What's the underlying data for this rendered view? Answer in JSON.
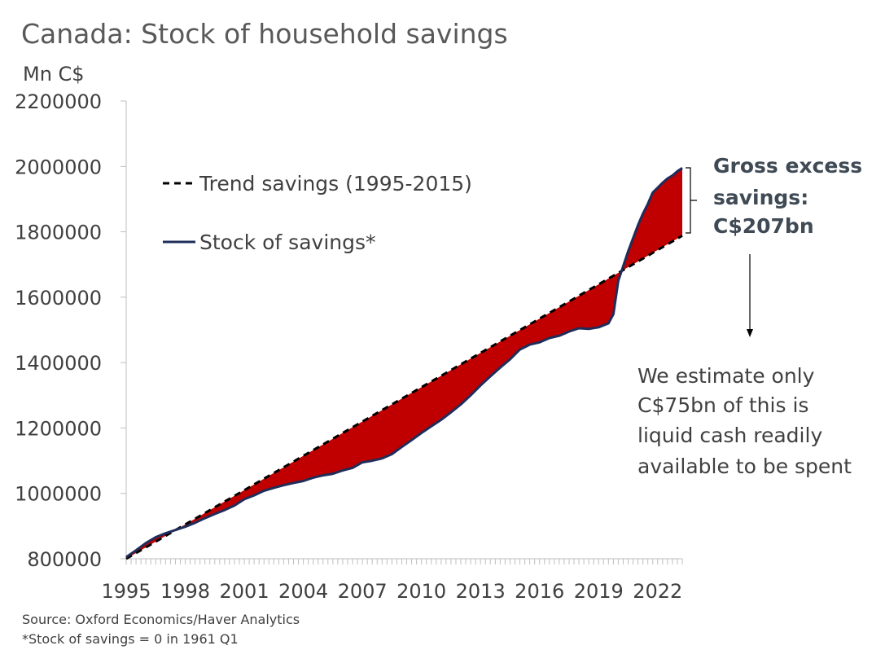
{
  "chart_data": {
    "type": "area",
    "title": "Canada: Stock of household savings",
    "ylabel": "Mn C$",
    "ylim": [
      800000,
      2200000
    ],
    "yticks": [
      800000,
      1000000,
      1200000,
      1400000,
      1600000,
      1800000,
      2000000,
      2200000
    ],
    "xlim": [
      1995.0,
      2023.25
    ],
    "xticks": [
      "1995",
      "1998",
      "2001",
      "2004",
      "2007",
      "2010",
      "2013",
      "2016",
      "2019",
      "2022"
    ],
    "legend": {
      "position": "top-left",
      "trend": "Trend savings (1995-2015)",
      "stock": "Stock of savings*"
    },
    "colors": {
      "stock": "#1f2d5a",
      "trend": "#000000",
      "fill": "#c00000",
      "title": "#595959",
      "annotation": "#3f4a55"
    },
    "series": [
      {
        "name": "Trend savings (1995-2015)",
        "style": "dashed",
        "x": [
          1995.0,
          2023.25
        ],
        "values": [
          800000,
          1788000
        ]
      },
      {
        "name": "Stock of savings*",
        "style": "solid",
        "x": [
          1995.0,
          1995.5,
          1996.0,
          1996.5,
          1997.0,
          1997.5,
          1998.0,
          1998.5,
          1999.0,
          1999.5,
          2000.0,
          2000.5,
          2001.0,
          2001.5,
          2002.0,
          2002.5,
          2003.0,
          2003.5,
          2004.0,
          2004.5,
          2005.0,
          2005.5,
          2006.0,
          2006.5,
          2007.0,
          2007.5,
          2008.0,
          2008.5,
          2009.0,
          2009.5,
          2010.0,
          2010.5,
          2011.0,
          2011.5,
          2012.0,
          2012.5,
          2013.0,
          2013.5,
          2014.0,
          2014.5,
          2015.0,
          2015.5,
          2016.0,
          2016.5,
          2017.0,
          2017.5,
          2018.0,
          2018.5,
          2019.0,
          2019.5,
          2019.75,
          2020.0,
          2020.5,
          2021.0,
          2021.25,
          2021.5,
          2021.75,
          2022.0,
          2022.25,
          2022.5,
          2022.75,
          2023.0,
          2023.25
        ],
        "values": [
          805000,
          826000,
          848000,
          866000,
          878000,
          888000,
          898000,
          910000,
          924000,
          937000,
          949000,
          963000,
          982000,
          994000,
          1008000,
          1017000,
          1025000,
          1032000,
          1038000,
          1048000,
          1055000,
          1060000,
          1070000,
          1078000,
          1095000,
          1100000,
          1107000,
          1120000,
          1142000,
          1163000,
          1185000,
          1205000,
          1225000,
          1248000,
          1272000,
          1300000,
          1330000,
          1358000,
          1385000,
          1410000,
          1440000,
          1455000,
          1462000,
          1475000,
          1482000,
          1495000,
          1505000,
          1503000,
          1508000,
          1520000,
          1548000,
          1650000,
          1740000,
          1820000,
          1855000,
          1885000,
          1920000,
          1935000,
          1950000,
          1963000,
          1972000,
          1985000,
          1995000
        ]
      }
    ],
    "annotations": {
      "bracket": "Gross excess savings: C$207bn",
      "bracket_lines": [
        "Gross excess",
        "savings:",
        "C$207bn"
      ],
      "note_lines": [
        "We estimate only",
        "C$75bn of this is",
        "liquid cash readily",
        "available to be spent"
      ]
    }
  },
  "footer": {
    "source": "Source: Oxford Economics/Haver Analytics",
    "note": "*Stock of savings = 0 in 1961 Q1"
  }
}
